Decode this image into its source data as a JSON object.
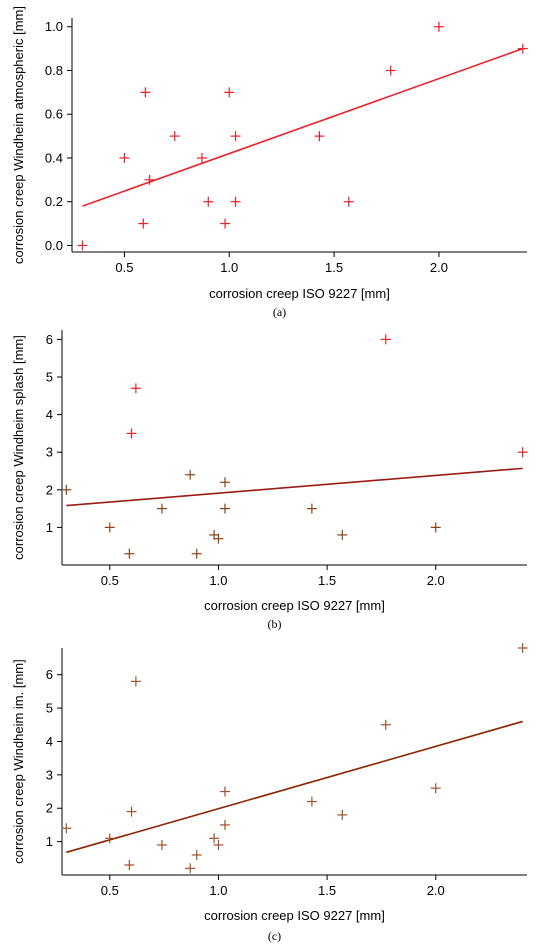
{
  "chart_data": [
    {
      "type": "scatter",
      "panel_label": "(a)",
      "xlabel": "corrosion creep ISO 9227 [mm]",
      "ylabel": "corrosion creep Windheim atmospheric [mm]",
      "xlim": [
        0.25,
        2.42
      ],
      "ylim": [
        -0.03,
        1.04
      ],
      "xticks": [
        0.5,
        1.0,
        1.5,
        2.0
      ],
      "xtick_labels": [
        "0.5",
        "1.0",
        "1.5",
        "2.0"
      ],
      "yticks": [
        0.0,
        0.2,
        0.4,
        0.6,
        0.8,
        1.0
      ],
      "ytick_labels": [
        "0.0",
        "0.2",
        "0.4",
        "0.6",
        "0.8",
        "1.0"
      ],
      "series": [
        {
          "x": [
            0.3,
            0.5,
            0.59,
            0.6,
            0.62,
            0.74,
            0.87,
            0.9,
            0.98,
            1.0,
            1.03,
            1.03,
            1.43,
            1.57,
            1.77,
            2.0,
            2.4
          ],
          "y": [
            0.0,
            0.4,
            0.1,
            0.7,
            0.3,
            0.5,
            0.4,
            0.2,
            0.1,
            0.7,
            0.5,
            0.2,
            0.5,
            0.2,
            0.8,
            1.0,
            0.9
          ],
          "color": "#e8222a"
        }
      ],
      "trendline": {
        "x": [
          0.3,
          2.4
        ],
        "y": [
          0.18,
          0.9
        ],
        "color": "#e8222a"
      }
    },
    {
      "type": "scatter",
      "panel_label": "(b)",
      "xlabel": "corrosion creep ISO 9227 [mm]",
      "ylabel": "corrosion creep Windheim splash [mm]",
      "xlim": [
        0.28,
        2.42
      ],
      "ylim": [
        0.0,
        6.25
      ],
      "xticks": [
        0.5,
        1.0,
        1.5,
        2.0
      ],
      "xtick_labels": [
        "0.5",
        "1.0",
        "1.5",
        "2.0"
      ],
      "yticks": [
        1,
        2,
        3,
        4,
        5,
        6
      ],
      "ytick_labels": [
        "1",
        "2",
        "3",
        "4",
        "5",
        "6"
      ],
      "series": [
        {
          "x": [
            0.6,
            0.62,
            1.77,
            2.4
          ],
          "y": [
            3.5,
            4.7,
            6.0,
            3.0
          ],
          "color": "#e8222a"
        },
        {
          "x": [
            0.3,
            0.5,
            0.59,
            0.74,
            0.87,
            0.9,
            0.98,
            1.0,
            1.03,
            1.03,
            1.43,
            1.57,
            2.0
          ],
          "y": [
            2.0,
            1.0,
            0.3,
            1.5,
            2.4,
            0.3,
            0.8,
            0.7,
            2.2,
            1.5,
            1.5,
            0.8,
            1.0
          ],
          "color": "#8b4513"
        }
      ],
      "trendline": {
        "x": [
          0.3,
          2.4
        ],
        "y": [
          1.58,
          2.57
        ],
        "color": "#9b1c14"
      }
    },
    {
      "type": "scatter",
      "panel_label": "(c)",
      "xlabel": "corrosion creep ISO 9227 [mm]",
      "ylabel": "corrosion creep Windheim im. [mm]",
      "xlim": [
        0.28,
        2.42
      ],
      "ylim": [
        0.0,
        6.8
      ],
      "xticks": [
        0.5,
        1.0,
        1.5,
        2.0
      ],
      "xtick_labels": [
        "0.5",
        "1.0",
        "1.5",
        "2.0"
      ],
      "yticks": [
        1,
        2,
        3,
        4,
        5,
        6
      ],
      "ytick_labels": [
        "1",
        "2",
        "3",
        "4",
        "5",
        "6"
      ],
      "series": [
        {
          "x": [
            0.3,
            0.5,
            0.59,
            0.6,
            0.62,
            0.74,
            0.87,
            0.9,
            0.98,
            1.0,
            1.03,
            1.03,
            1.43,
            1.57,
            1.77,
            2.0,
            2.4
          ],
          "y": [
            1.4,
            1.1,
            0.3,
            1.9,
            5.8,
            0.9,
            0.2,
            0.6,
            1.1,
            0.9,
            1.5,
            2.5,
            2.2,
            1.8,
            4.5,
            2.6,
            6.8
          ],
          "color": "#a0522d"
        }
      ],
      "trendline": {
        "x": [
          0.3,
          2.4
        ],
        "y": [
          0.68,
          4.6
        ],
        "color": "#8b2500"
      }
    }
  ]
}
